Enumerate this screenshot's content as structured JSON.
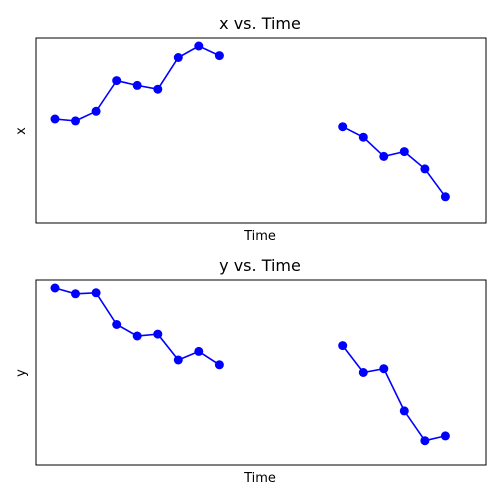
{
  "chart_data": [
    {
      "type": "line",
      "title": "x vs. Time",
      "xlabel": "Time",
      "ylabel": "x",
      "xticks": "none",
      "yticks": "none",
      "grid": false,
      "color": "#0000ff",
      "marker": "circle",
      "xlim": [
        0,
        20
      ],
      "ylim": [
        -0.5,
        8.3
      ],
      "segments": [
        {
          "x": [
            0,
            1,
            2,
            3,
            4,
            5,
            6,
            7,
            8
          ],
          "y": [
            4.5,
            4.4,
            4.9,
            6.5,
            6.25,
            6.05,
            7.7,
            8.3,
            7.8
          ]
        },
        {
          "x": [
            14,
            15,
            16,
            17,
            18,
            19
          ],
          "y": [
            4.1,
            3.55,
            2.55,
            2.8,
            1.9,
            0.45
          ]
        }
      ]
    },
    {
      "type": "line",
      "title": "y vs. Time",
      "xlabel": "Time",
      "ylabel": "y",
      "xticks": "none",
      "yticks": "none",
      "grid": false,
      "color": "#0000ff",
      "marker": "circle",
      "xlim": [
        0,
        20
      ],
      "ylim": [
        -0.6,
        8.2
      ],
      "segments": [
        {
          "x": [
            0,
            1,
            2,
            3,
            4,
            5,
            6,
            7,
            8
          ],
          "y": [
            8.2,
            7.9,
            7.95,
            6.3,
            5.7,
            5.8,
            4.45,
            4.9,
            4.2
          ]
        },
        {
          "x": [
            14,
            15,
            16,
            17,
            18,
            19
          ],
          "y": [
            5.2,
            3.8,
            4.0,
            1.8,
            0.25,
            0.5
          ]
        }
      ]
    }
  ]
}
